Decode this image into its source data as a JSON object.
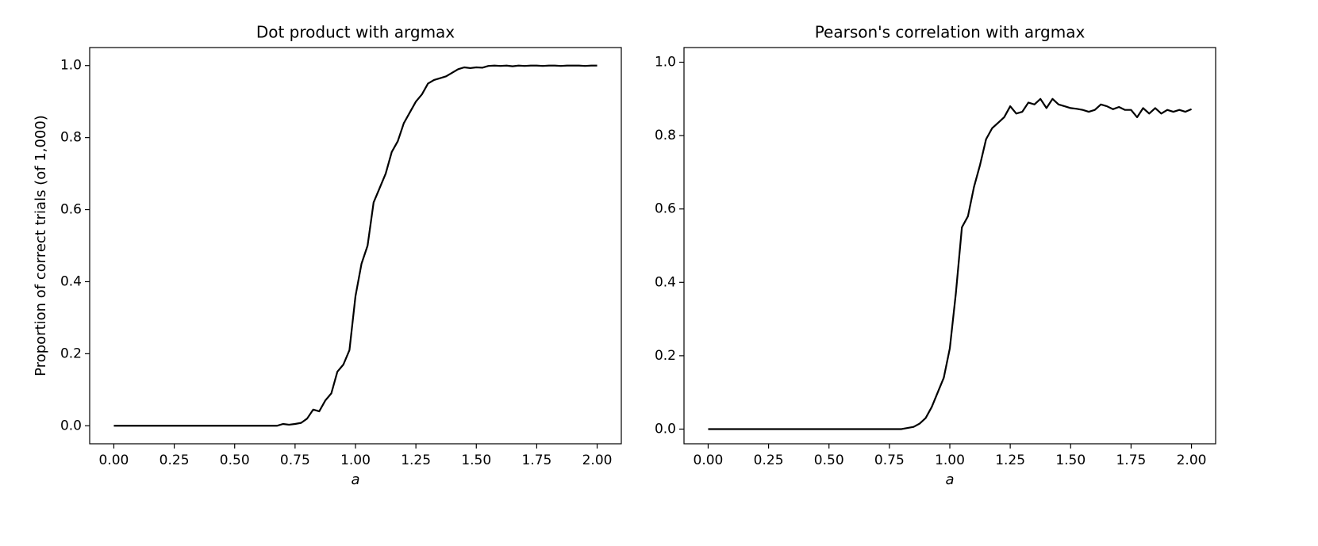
{
  "chart_data": [
    {
      "type": "line",
      "title": "Dot product with argmax",
      "xlabel": "a",
      "ylabel": "Proportion of correct trials (of 1,000)",
      "color": "#000000",
      "x": [
        0,
        0.025,
        0.05,
        0.075,
        0.1,
        0.125,
        0.15,
        0.175,
        0.2,
        0.225,
        0.25,
        0.275,
        0.3,
        0.325,
        0.35,
        0.375,
        0.4,
        0.425,
        0.45,
        0.475,
        0.5,
        0.525,
        0.55,
        0.575,
        0.6,
        0.625,
        0.65,
        0.675,
        0.7,
        0.725,
        0.75,
        0.775,
        0.8,
        0.825,
        0.85,
        0.875,
        0.9,
        0.925,
        0.95,
        0.975,
        1.0,
        1.025,
        1.05,
        1.075,
        1.1,
        1.125,
        1.15,
        1.175,
        1.2,
        1.225,
        1.25,
        1.275,
        1.3,
        1.325,
        1.35,
        1.375,
        1.4,
        1.425,
        1.45,
        1.475,
        1.5,
        1.525,
        1.55,
        1.575,
        1.6,
        1.625,
        1.65,
        1.675,
        1.7,
        1.725,
        1.75,
        1.775,
        1.8,
        1.825,
        1.85,
        1.875,
        1.9,
        1.925,
        1.95,
        1.975,
        2.0
      ],
      "values": [
        0,
        0,
        0,
        0,
        0,
        0,
        0,
        0,
        0,
        0,
        0,
        0,
        0,
        0,
        0,
        0,
        0,
        0,
        0,
        0,
        0,
        0,
        0,
        0,
        0,
        0,
        0,
        0,
        0.005,
        0.003,
        0.005,
        0.008,
        0.02,
        0.045,
        0.04,
        0.07,
        0.09,
        0.15,
        0.17,
        0.21,
        0.36,
        0.45,
        0.5,
        0.62,
        0.66,
        0.7,
        0.76,
        0.79,
        0.84,
        0.87,
        0.9,
        0.92,
        0.95,
        0.96,
        0.965,
        0.97,
        0.98,
        0.99,
        0.995,
        0.993,
        0.995,
        0.994,
        0.999,
        1.0,
        0.999,
        1.0,
        0.998,
        1.0,
        0.999,
        1.0,
        1.0,
        0.999,
        1.0,
        1.0,
        0.999,
        1.0,
        1.0,
        1.0,
        0.999,
        1.0,
        1.0
      ],
      "xlim": [
        -0.1,
        2.1
      ],
      "ylim": [
        -0.05,
        1.05
      ],
      "xticks": [
        {
          "value": 0,
          "label": "0.00"
        },
        0.25,
        {
          "value": 0.5,
          "label": "0.50"
        },
        0.75,
        {
          "value": 1,
          "label": "1.00"
        },
        1.25,
        {
          "value": 1.5,
          "label": "1.50"
        },
        1.75,
        {
          "value": 2,
          "label": "2.00"
        }
      ],
      "yticks": [
        {
          "value": 0,
          "label": "0.0"
        },
        0.2,
        0.4,
        0.6,
        0.8,
        {
          "value": 1,
          "label": "1.0"
        }
      ]
    },
    {
      "type": "line",
      "title": "Pearson's correlation with argmax",
      "xlabel": "a",
      "color": "#000000",
      "x": [
        0,
        0.025,
        0.05,
        0.075,
        0.1,
        0.125,
        0.15,
        0.175,
        0.2,
        0.225,
        0.25,
        0.275,
        0.3,
        0.325,
        0.35,
        0.375,
        0.4,
        0.425,
        0.45,
        0.475,
        0.5,
        0.525,
        0.55,
        0.575,
        0.6,
        0.625,
        0.65,
        0.675,
        0.7,
        0.725,
        0.75,
        0.775,
        0.8,
        0.825,
        0.85,
        0.875,
        0.9,
        0.925,
        0.95,
        0.975,
        1.0,
        1.025,
        1.05,
        1.075,
        1.1,
        1.125,
        1.15,
        1.175,
        1.2,
        1.225,
        1.25,
        1.275,
        1.3,
        1.325,
        1.35,
        1.375,
        1.4,
        1.425,
        1.45,
        1.475,
        1.5,
        1.525,
        1.55,
        1.575,
        1.6,
        1.625,
        1.65,
        1.675,
        1.7,
        1.725,
        1.75,
        1.775,
        1.8,
        1.825,
        1.85,
        1.875,
        1.9,
        1.925,
        1.95,
        1.975,
        2.0
      ],
      "values": [
        0,
        0,
        0,
        0,
        0,
        0,
        0,
        0,
        0,
        0,
        0,
        0,
        0,
        0,
        0,
        0,
        0,
        0,
        0,
        0,
        0,
        0,
        0,
        0,
        0,
        0,
        0,
        0,
        0,
        0,
        0,
        0,
        0,
        0.003,
        0.006,
        0.015,
        0.03,
        0.06,
        0.1,
        0.14,
        0.22,
        0.37,
        0.55,
        0.58,
        0.66,
        0.72,
        0.79,
        0.82,
        0.835,
        0.85,
        0.88,
        0.86,
        0.865,
        0.89,
        0.885,
        0.9,
        0.875,
        0.9,
        0.885,
        0.88,
        0.875,
        0.873,
        0.87,
        0.865,
        0.87,
        0.885,
        0.88,
        0.872,
        0.878,
        0.87,
        0.87,
        0.85,
        0.875,
        0.86,
        0.875,
        0.86,
        0.87,
        0.865,
        0.87,
        0.865,
        0.872
      ],
      "xlim": [
        -0.1,
        2.1
      ],
      "ylim": [
        -0.04,
        1.04
      ],
      "xticks": [
        {
          "value": 0,
          "label": "0.00"
        },
        0.25,
        {
          "value": 0.5,
          "label": "0.50"
        },
        0.75,
        {
          "value": 1,
          "label": "1.00"
        },
        1.25,
        {
          "value": 1.5,
          "label": "1.50"
        },
        1.75,
        {
          "value": 2,
          "label": "2.00"
        }
      ],
      "yticks": [
        {
          "value": 0,
          "label": "0.0"
        },
        0.2,
        0.4,
        0.6,
        0.8,
        {
          "value": 1,
          "label": "1.0"
        }
      ]
    }
  ]
}
